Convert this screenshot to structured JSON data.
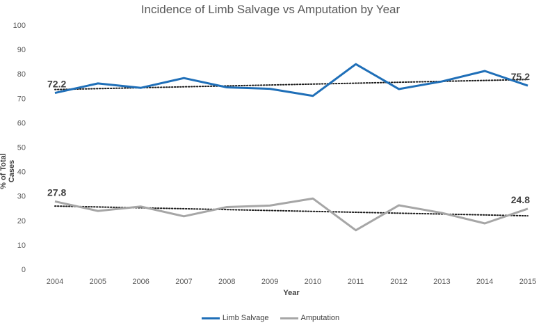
{
  "chart_data": {
    "type": "line",
    "title": "Incidence of Limb Salvage vs Amputation by Year",
    "xlabel": "Year",
    "ylabel": "% of Total Cases",
    "categories": [
      "2004",
      "2005",
      "2006",
      "2007",
      "2008",
      "2009",
      "2010",
      "2011",
      "2012",
      "2013",
      "2014",
      "2015"
    ],
    "ylim": [
      0,
      100
    ],
    "yticks": [
      0,
      10,
      20,
      30,
      40,
      50,
      60,
      70,
      80,
      90,
      100
    ],
    "grid": false,
    "legend_position": "bottom",
    "series": [
      {
        "name": "Limb Salvage",
        "color": "#1f6fb8",
        "values": [
          72.2,
          76.1,
          74.3,
          78.3,
          74.5,
          73.9,
          71.0,
          84.0,
          73.8,
          76.9,
          81.2,
          75.2
        ],
        "trendline": [
          73.6,
          77.7
        ],
        "labels": [
          {
            "index": 0,
            "text": "72.2"
          },
          {
            "index": 11,
            "text": "75.2"
          }
        ]
      },
      {
        "name": "Amputation",
        "color": "#a6a6a6",
        "values": [
          27.8,
          23.9,
          25.7,
          21.7,
          25.5,
          26.1,
          29.0,
          16.0,
          26.2,
          23.1,
          18.8,
          24.8
        ],
        "trendline": [
          25.9,
          21.9
        ],
        "labels": [
          {
            "index": 0,
            "text": "27.8"
          },
          {
            "index": 11,
            "text": "24.8"
          }
        ]
      }
    ]
  }
}
